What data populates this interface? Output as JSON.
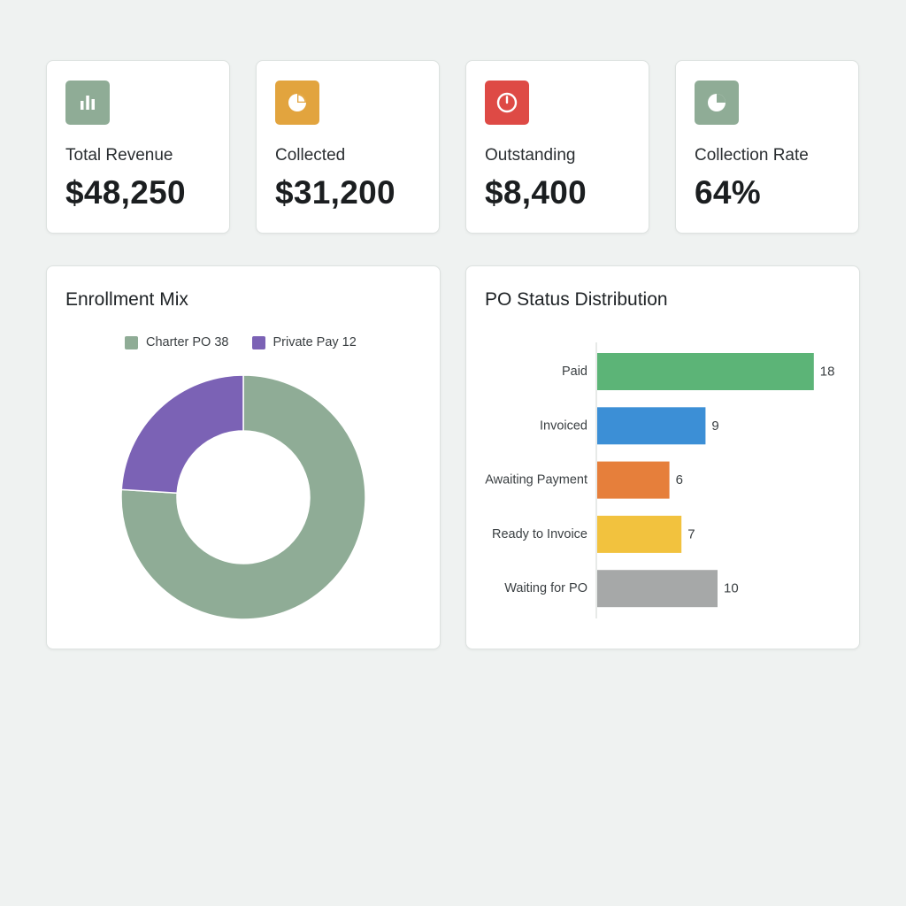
{
  "kpis": [
    {
      "label": "Total Revenue",
      "value": "$48,250",
      "icon": "bar-chart-icon",
      "color": "#8fac96"
    },
    {
      "label": "Collected",
      "value": "$31,200",
      "icon": "pie-chart-icon",
      "color": "#e2a43e"
    },
    {
      "label": "Outstanding",
      "value": "$8,400",
      "icon": "clock-icon",
      "color": "#de4a45"
    },
    {
      "label": "Collection Rate",
      "value": "64%",
      "icon": "pie-chart-icon",
      "color": "#8fac96"
    }
  ],
  "enrollment": {
    "title": "Enrollment Mix",
    "legend": [
      "Charter PO 38",
      "Private Pay 12"
    ],
    "chart_data": {
      "type": "pie",
      "labels": [
        "Charter PO",
        "Private Pay"
      ],
      "values": [
        38,
        12
      ],
      "colors": [
        "#8fac96",
        "#7b62b5"
      ]
    }
  },
  "po_status": {
    "title": "PO Status Distribution",
    "chart_data": {
      "type": "bar",
      "orientation": "horizontal",
      "categories": [
        "Paid",
        "Invoiced",
        "Awaiting Payment",
        "Ready to Invoice",
        "Waiting for PO"
      ],
      "values": [
        18,
        9,
        6,
        7,
        10
      ],
      "value_labels": [
        "18",
        "9",
        "6",
        "7",
        "10"
      ],
      "colors": [
        "#5cb477",
        "#3c8fd6",
        "#e67f3b",
        "#f2c23e",
        "#a6a8a8"
      ]
    }
  }
}
